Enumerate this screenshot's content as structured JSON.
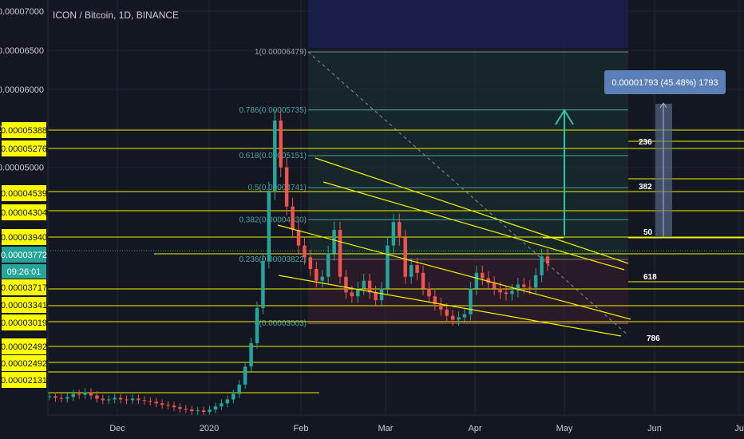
{
  "header": {
    "symbol_title": "ICON / Bitcoin, 1D, BINANCE"
  },
  "colors": {
    "background": "#131722",
    "grid": "#1f2433",
    "axis_text": "#c9ccd4",
    "up": "#26a69a",
    "down": "#ef5350",
    "level_line": "#f2f200",
    "level_box": "#ffff00",
    "fib": "#4aa3a0",
    "measure_tooltip": "#5b7fb8",
    "current_price": "#26a69a"
  },
  "chart_data": {
    "type": "candlestick",
    "title": "ICON / Bitcoin, 1D, BINANCE",
    "x_ticks": [
      "Dec",
      "2020",
      "Feb",
      "Mar",
      "Apr",
      "May",
      "Jun",
      "Ju"
    ],
    "y_ticks": [
      "0.00007000",
      "0.00006500",
      "0.00006000",
      "0.00005500",
      "0.00005000"
    ],
    "ylim": [
      1.85e-05,
      7e-05
    ],
    "price_levels": [
      "0.00005388",
      "0.00005276",
      "0.00004539",
      "0.00004304",
      "0.00003940",
      "0.00003717",
      "0.00003341",
      "0.00003019",
      "0.00002492",
      "0.00002492",
      "0.00002131"
    ],
    "current_price": {
      "value": "0.00003772",
      "countdown": "09:26:01"
    },
    "fib_levels": [
      {
        "label": "1(0.00006479)",
        "value": 6.479e-05
      },
      {
        "label": "0.786(0.00005735)",
        "value": 5.735e-05
      },
      {
        "label": "0.618(0.00005151)",
        "value": 5.151e-05
      },
      {
        "label": "0.5(0.00004741)",
        "value": 4.741e-05
      },
      {
        "label": "0.382(0.00004330)",
        "value": 4.33e-05
      },
      {
        "label": "0.236(0.00003822)",
        "value": 3.822e-05
      },
      {
        "label": "0(0.00003003)",
        "value": 3.003e-05
      }
    ],
    "right_fib_labels": [
      "236",
      "382",
      "50",
      "618",
      "786"
    ],
    "measure_tooltip": "0.00001793 (45.48%) 1793",
    "close_series": [
      2.07e-05,
      2.05e-05,
      2.04e-05,
      2.06e-05,
      2.1e-05,
      2.09e-05,
      2.12e-05,
      2.08e-05,
      2.04e-05,
      2.02e-05,
      2.03e-05,
      2.05e-05,
      2.03e-05,
      2.02e-05,
      2.04e-05,
      2.02e-05,
      2.01e-05,
      2e-05,
      1.98e-05,
      1.96e-05,
      1.95e-05,
      1.93e-05,
      1.91e-05,
      1.9e-05,
      1.88e-05,
      1.89e-05,
      1.87e-05,
      1.9e-05,
      1.94e-05,
      1.98e-05,
      2.03e-05,
      2.1e-05,
      2.22e-05,
      2.45e-05,
      2.75e-05,
      3.2e-05,
      3.8e-05,
      4.7e-05,
      5.6e-05,
      5e-05,
      4.5e-05,
      4.2e-05,
      4e-05,
      3.85e-05,
      3.7e-05,
      3.55e-05,
      3.6e-05,
      3.9e-05,
      4.2e-05,
      3.6e-05,
      3.4e-05,
      3.35e-05,
      3.45e-05,
      3.55e-05,
      3.4e-05,
      3.3e-05,
      3.45e-05,
      4e-05,
      4.3e-05,
      4.1e-05,
      3.6e-05,
      3.75e-05,
      3.65e-05,
      3.45e-05,
      3.35e-05,
      3.25e-05,
      3.18e-05,
      3.1e-05,
      3.05e-05,
      3.08e-05,
      3.12e-05,
      3.45e-05,
      3.65e-05,
      3.58e-05,
      3.52e-05,
      3.45e-05,
      3.4e-05,
      3.38e-05,
      3.42e-05,
      3.5e-05,
      3.47e-05,
      3.46e-05,
      3.62e-05,
      3.86e-05,
      3.77e-05
    ]
  }
}
